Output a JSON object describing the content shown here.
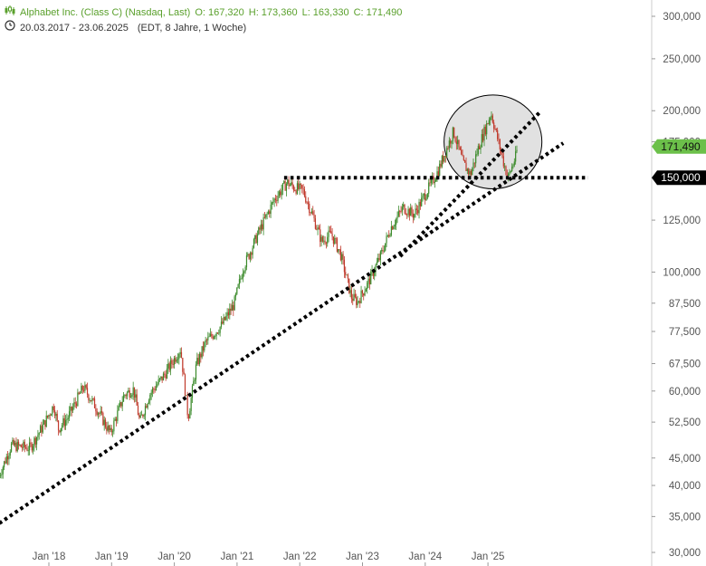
{
  "header": {
    "line1": {
      "icon": "candlestick-chart-icon",
      "title": "Alphabet Inc. (Class C) (Nasdaq, Last)",
      "open": "O: 167,320",
      "high": "H: 173,360",
      "low": "L: 163,330",
      "close": "C: 171,490"
    },
    "line2": {
      "icon": "clock-icon",
      "range": "20.03.2017 - 23.06.2025",
      "info": "(EDT, 8 Jahre, 1 Woche)"
    }
  },
  "colors": {
    "up": "#3a8a2a",
    "down": "#c0392b",
    "last_badge": "#6cc04a",
    "level_badge": "#000000",
    "highlight_fill": "#dcdcdc"
  },
  "chart_data": {
    "type": "candlestick",
    "y_scale": "log",
    "ylim": [
      30,
      330
    ],
    "y_ticks": [
      {
        "value": 300,
        "label": "300,000"
      },
      {
        "value": 250,
        "label": "250,000"
      },
      {
        "value": 200,
        "label": "200,000"
      },
      {
        "value": 175,
        "label": "175,000"
      },
      {
        "value": 125,
        "label": "125,000"
      },
      {
        "value": 100,
        "label": "100,000"
      },
      {
        "value": 87.5,
        "label": "87,500"
      },
      {
        "value": 77.5,
        "label": "77,500"
      },
      {
        "value": 67.5,
        "label": "67,500"
      },
      {
        "value": 60,
        "label": "60,000"
      },
      {
        "value": 52.5,
        "label": "52,500"
      },
      {
        "value": 45,
        "label": "45,000"
      },
      {
        "value": 40,
        "label": "40,000"
      },
      {
        "value": 35,
        "label": "35,000"
      },
      {
        "value": 30,
        "label": "30,000"
      }
    ],
    "x_ticks": [
      {
        "value": 2018.0,
        "label": "Jan '18"
      },
      {
        "value": 2019.0,
        "label": "Jan '19"
      },
      {
        "value": 2020.0,
        "label": "Jan '20"
      },
      {
        "value": 2021.0,
        "label": "Jan '21"
      },
      {
        "value": 2022.0,
        "label": "Jan '22"
      },
      {
        "value": 2023.0,
        "label": "Jan '23"
      },
      {
        "value": 2024.0,
        "label": "Jan '24"
      },
      {
        "value": 2025.0,
        "label": "Jan '25"
      }
    ],
    "xlim": [
      2017.21,
      2026.6
    ],
    "price_path": [
      [
        2017.21,
        41.8
      ],
      [
        2017.4,
        47.5
      ],
      [
        2017.7,
        47.0
      ],
      [
        2017.9,
        51.5
      ],
      [
        2018.08,
        56.5
      ],
      [
        2018.15,
        51.0
      ],
      [
        2018.3,
        53.5
      ],
      [
        2018.55,
        61.0
      ],
      [
        2018.75,
        56.0
      ],
      [
        2018.98,
        50.0
      ],
      [
        2019.2,
        59.0
      ],
      [
        2019.35,
        60.5
      ],
      [
        2019.45,
        52.5
      ],
      [
        2019.6,
        59.0
      ],
      [
        2019.85,
        64.5
      ],
      [
        2020.1,
        72.0
      ],
      [
        2020.22,
        53.5
      ],
      [
        2020.35,
        67.0
      ],
      [
        2020.5,
        74.0
      ],
      [
        2020.75,
        79.5
      ],
      [
        2020.95,
        87.0
      ],
      [
        2021.1,
        102.0
      ],
      [
        2021.35,
        119.0
      ],
      [
        2021.6,
        137.0
      ],
      [
        2021.8,
        147.0
      ],
      [
        2021.9,
        144.0
      ],
      [
        2022.05,
        142.0
      ],
      [
        2022.2,
        128.0
      ],
      [
        2022.35,
        114.0
      ],
      [
        2022.5,
        118.0
      ],
      [
        2022.65,
        108.0
      ],
      [
        2022.82,
        90.0
      ],
      [
        2022.92,
        88.0
      ],
      [
        2023.1,
        96.0
      ],
      [
        2023.3,
        108.0
      ],
      [
        2023.45,
        121.0
      ],
      [
        2023.65,
        132.0
      ],
      [
        2023.82,
        128.0
      ],
      [
        2024.05,
        143.0
      ],
      [
        2024.2,
        154.0
      ],
      [
        2024.45,
        183.0
      ],
      [
        2024.6,
        160.0
      ],
      [
        2024.72,
        152.0
      ],
      [
        2024.85,
        171.0
      ],
      [
        2025.05,
        198.0
      ],
      [
        2025.25,
        160.0
      ],
      [
        2025.32,
        150.0
      ],
      [
        2025.45,
        165.0
      ],
      [
        2025.47,
        171.49
      ]
    ],
    "last_price": {
      "value": 171.49,
      "label": "171,490"
    },
    "support_level": {
      "value": 150,
      "label": "150,000"
    },
    "trendlines": [
      {
        "name": "long-term-support",
        "points": [
          [
            2017.21,
            34.0
          ],
          [
            2026.2,
            174.0
          ]
        ]
      },
      {
        "name": "short-term-support",
        "points": [
          [
            2023.6,
            107.0
          ],
          [
            2025.85,
            200.0
          ]
        ]
      },
      {
        "name": "horizontal-resistance",
        "points": [
          [
            2021.75,
            150.0
          ],
          [
            2026.6,
            150.0
          ]
        ]
      }
    ],
    "highlight_zone": {
      "x_range": [
        2024.3,
        2025.86
      ],
      "y_range": [
        143,
        214
      ]
    },
    "grid": false
  }
}
